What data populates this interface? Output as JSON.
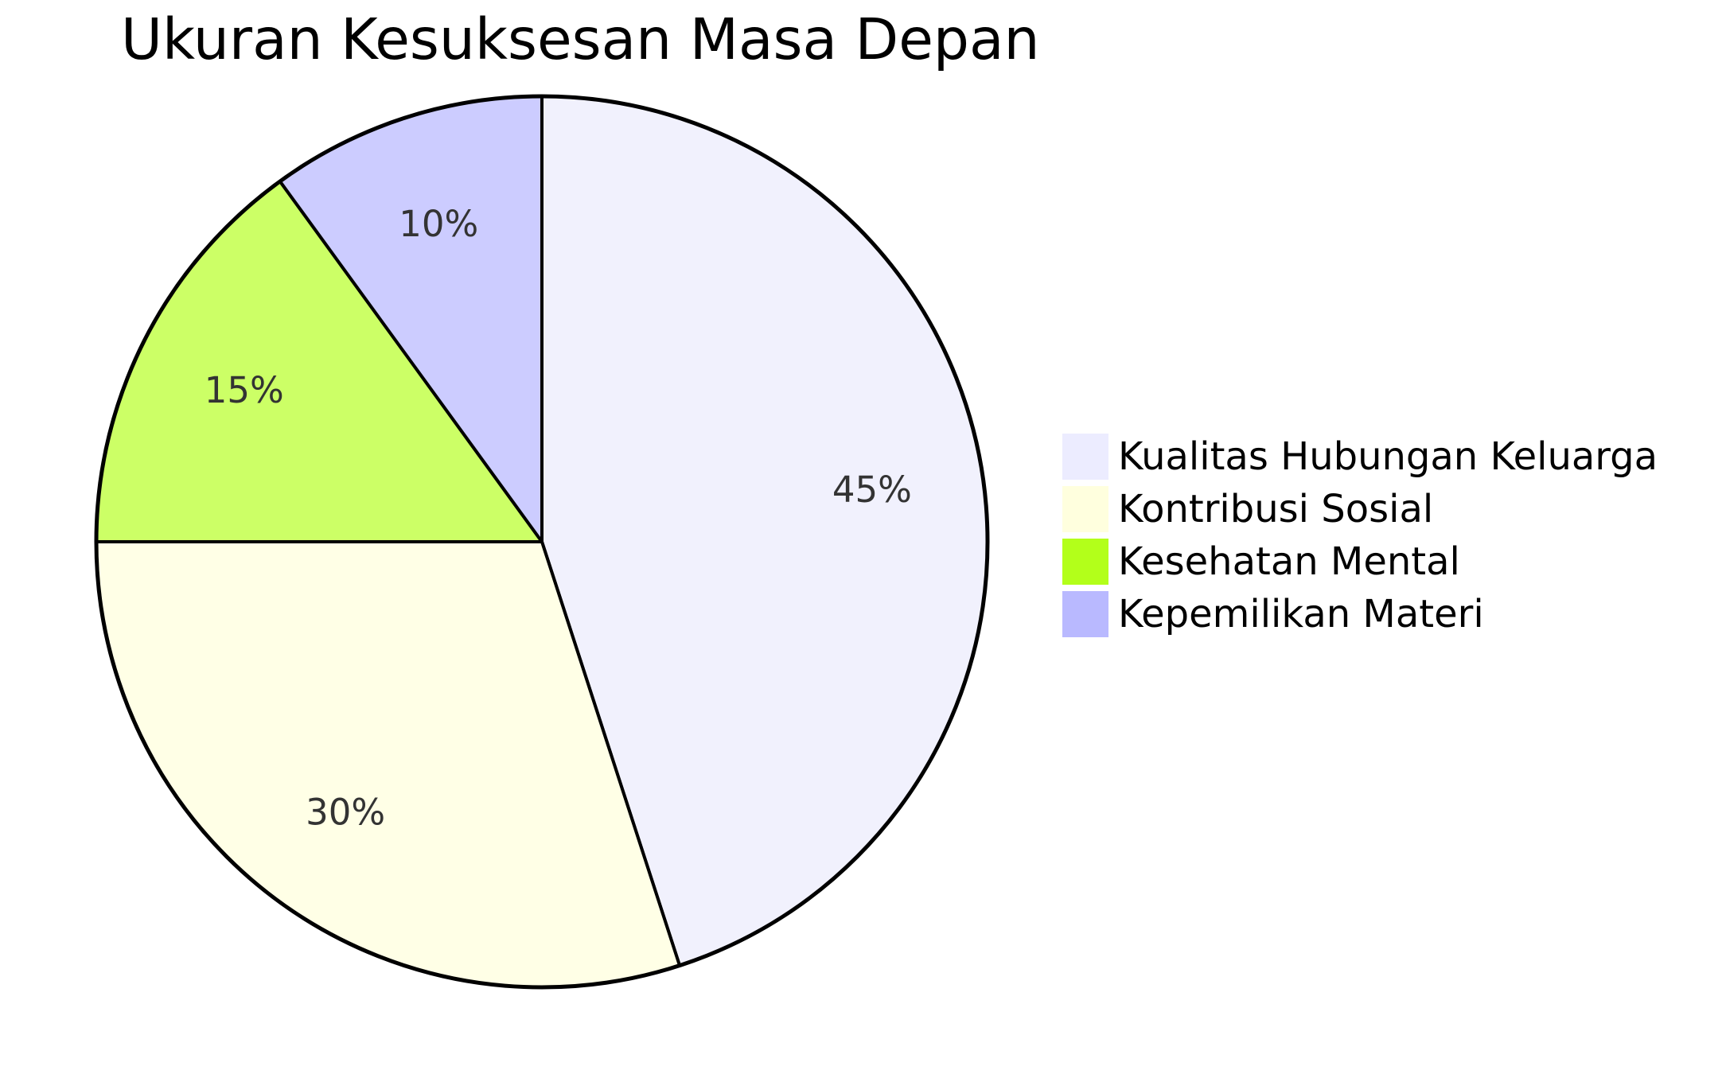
{
  "chart_data": {
    "type": "pie",
    "title": "Ukuran Kesuksesan Masa Depan",
    "categories": [
      "Kualitas Hubungan Keluarga",
      "Kontribusi Sosial",
      "Kesehatan Mental",
      "Kepemilikan Materi"
    ],
    "values": [
      45,
      30,
      15,
      10
    ],
    "value_labels": [
      "45%",
      "30%",
      "15%",
      "10%"
    ],
    "colors": [
      "#f1f1fd",
      "#ffffe6",
      "#ccff66",
      "#ccccff"
    ],
    "legend_colors": [
      "#ececff",
      "#ffffde",
      "#b3ff1a",
      "#b9b9ff"
    ],
    "slice_border_color": "#000000",
    "legend_position": "right"
  }
}
